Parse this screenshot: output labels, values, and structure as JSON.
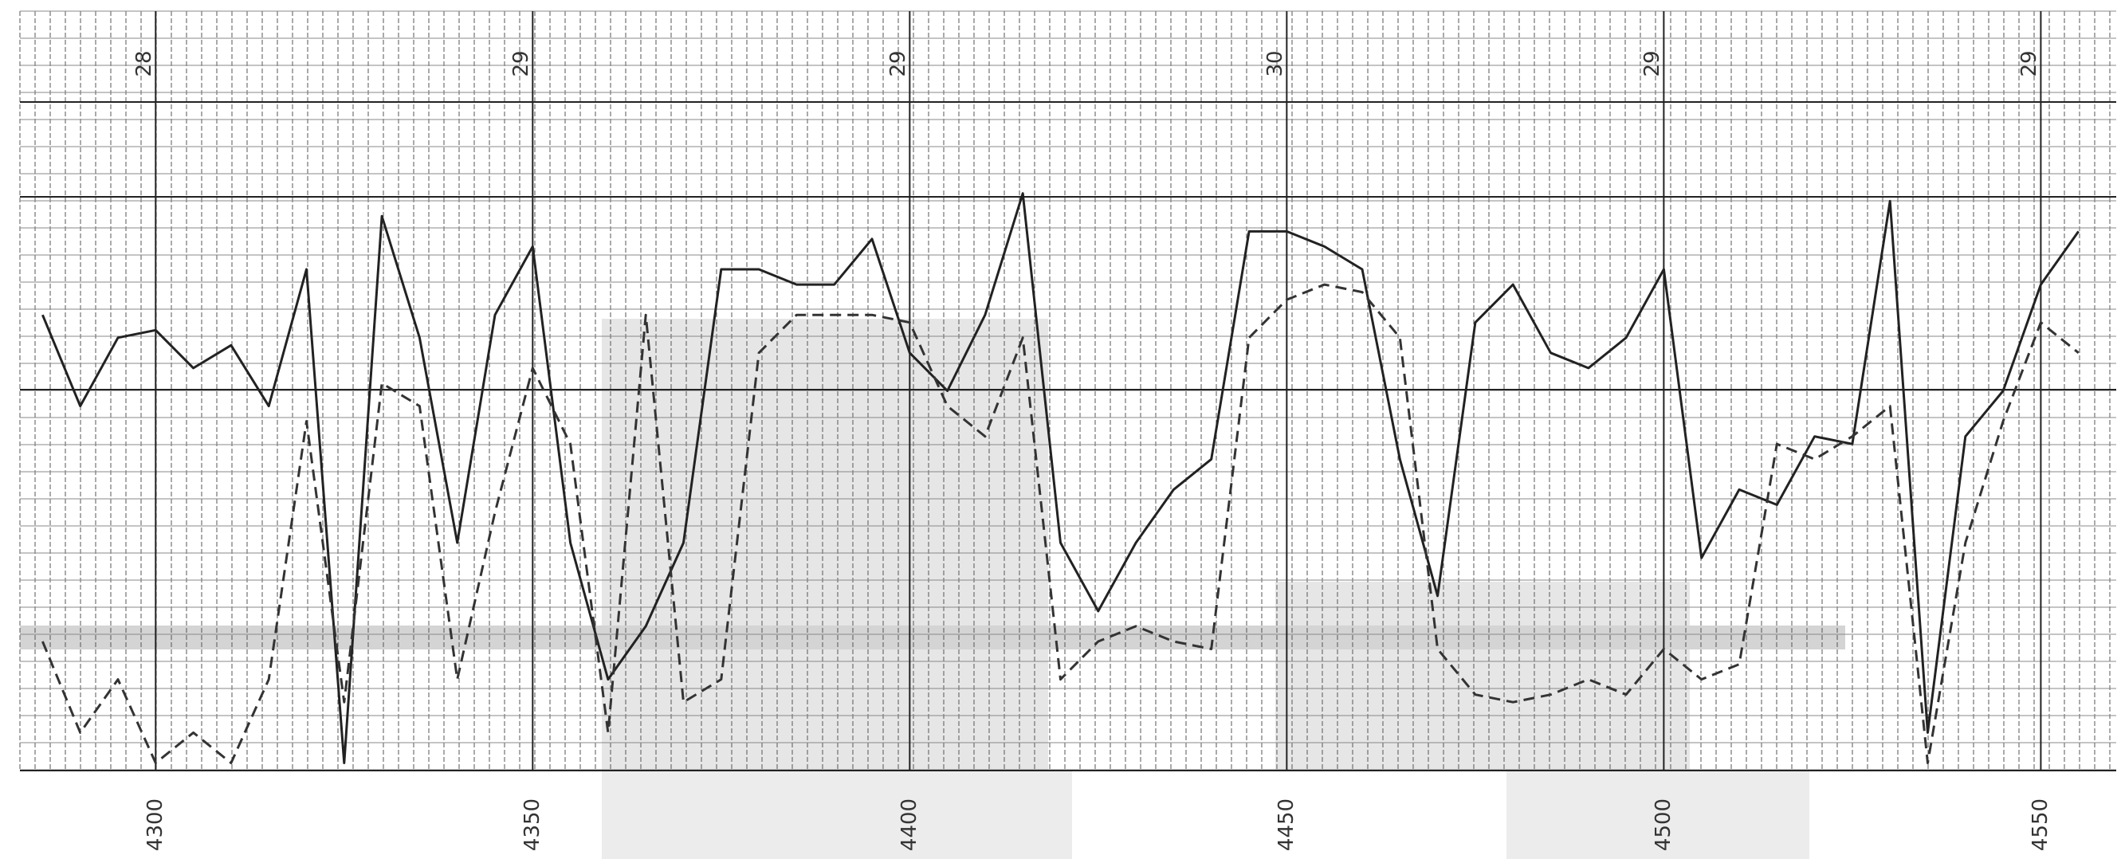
{
  "chart_data": {
    "type": "line",
    "x": [
      4285,
      4290,
      4295,
      4300,
      4305,
      4310,
      4315,
      4320,
      4325,
      4330,
      4335,
      4340,
      4345,
      4350,
      4355,
      4360,
      4365,
      4370,
      4375,
      4380,
      4385,
      4390,
      4395,
      4400,
      4405,
      4410,
      4415,
      4420,
      4425,
      4430,
      4435,
      4440,
      4445,
      4450,
      4455,
      4460,
      4465,
      4470,
      4475,
      4480,
      4485,
      4490,
      4495,
      4500,
      4505,
      4510,
      4515,
      4520,
      4525,
      4530,
      4535,
      4540,
      4545,
      4550,
      4555
    ],
    "series": [
      {
        "color": "#222222",
        "dash": "solid",
        "values": [
          60,
          48,
          57,
          58,
          53,
          56,
          48,
          66,
          1,
          73,
          57,
          30,
          60,
          69,
          30,
          12,
          19,
          30,
          66,
          66,
          64,
          64,
          70,
          55,
          50,
          60,
          76,
          30,
          21,
          30,
          37,
          41,
          71,
          71,
          69,
          66,
          41,
          23,
          59,
          64,
          55,
          53,
          57,
          66,
          28,
          37,
          35,
          44,
          43,
          75,
          5,
          44,
          50,
          64,
          71
        ]
      },
      {
        "color": "#333333",
        "dash": "dashed",
        "values": [
          17,
          5,
          12,
          1,
          5,
          1,
          12,
          46,
          9,
          51,
          48,
          12,
          34,
          53,
          43,
          5,
          60,
          9,
          12,
          55,
          60,
          60,
          60,
          59,
          48,
          44,
          57,
          12,
          17,
          19,
          17,
          16,
          57,
          62,
          64,
          63,
          57,
          16,
          10,
          9,
          10,
          12,
          10,
          16,
          12,
          14,
          43,
          41,
          44,
          48,
          1,
          30,
          46,
          59,
          55
        ]
      }
    ],
    "xlim": [
      4282,
      4560
    ],
    "xticks": [
      4300,
      4350,
      4400,
      4450,
      4500,
      4550
    ],
    "ylim": [
      0,
      100
    ],
    "annotations": [
      {
        "x": 4300,
        "text": "28"
      },
      {
        "x": 4350,
        "text": "29"
      },
      {
        "x": 4400,
        "text": "29"
      },
      {
        "x": 4450,
        "text": "30"
      },
      {
        "x": 4500,
        "text": "29"
      },
      {
        "x": 4550,
        "text": "29"
      }
    ],
    "grid": true
  }
}
